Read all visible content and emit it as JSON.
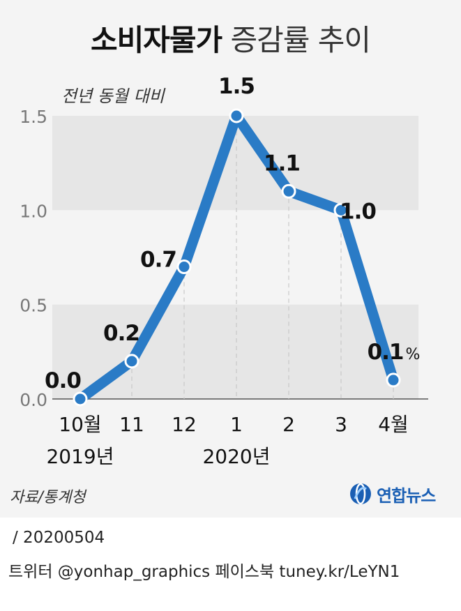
{
  "title": {
    "bold": "소비자물가",
    "light": "증감률 추이"
  },
  "colors": {
    "line": "#2a7bc6",
    "band": "#e6e6e6",
    "background": "#f4f4f4"
  },
  "chart_data": {
    "type": "line",
    "title": "소비자물가 증감률 추이",
    "ylabel": "전년 동월 대비",
    "ylim": [
      0,
      1.5
    ],
    "yticks": [
      "0.0",
      "0.5",
      "1.0",
      "1.5"
    ],
    "x_tick_labels": [
      "10월",
      "11",
      "12",
      "1",
      "2",
      "3",
      "4월"
    ],
    "x_group_labels": [
      "2019년",
      "2020년"
    ],
    "x": [
      "2019-10",
      "2019-11",
      "2019-12",
      "2020-01",
      "2020-02",
      "2020-03",
      "2020-04"
    ],
    "series": [
      {
        "values": [
          0.0,
          0.2,
          0.7,
          1.5,
          1.1,
          1.0,
          0.1
        ],
        "labels": [
          "0.0",
          "0.2",
          "0.7",
          "1.5",
          "1.1",
          "1.0",
          "0.1"
        ]
      }
    ],
    "last_label_unit": "%",
    "grid": "alternating horizontal bands"
  },
  "footer": {
    "source": "자료/통계청",
    "logo": "연합뉴스",
    "logo_icon": "yonhap-globe-icon",
    "date": "/ 20200504",
    "social": "트위터 @yonhap_graphics  페이스북 tuney.kr/LeYN1"
  }
}
